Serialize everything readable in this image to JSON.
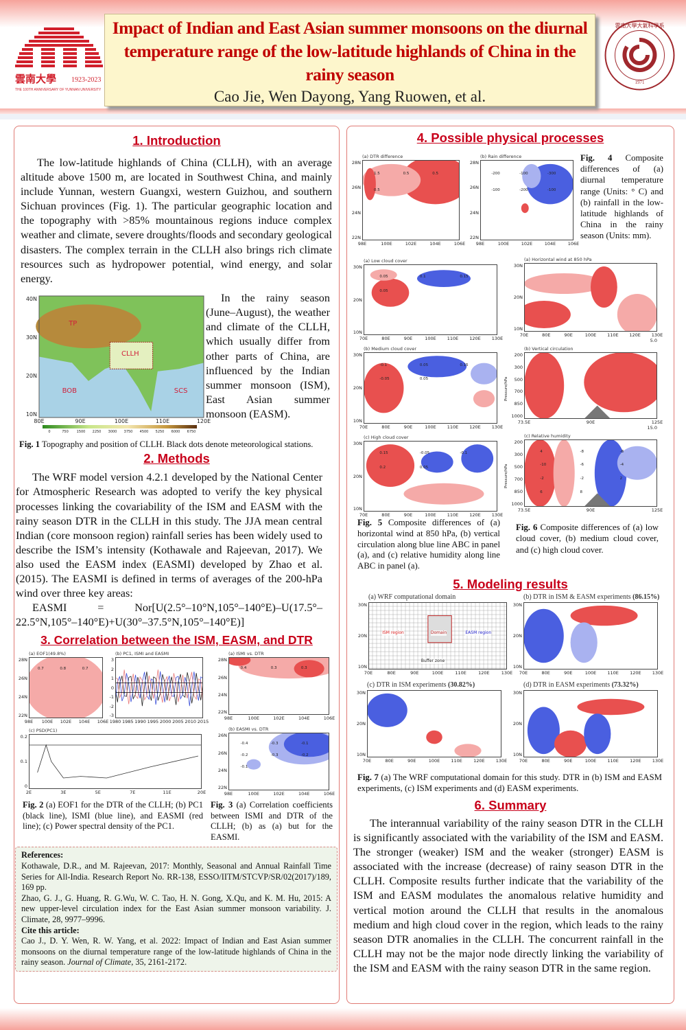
{
  "header": {
    "title": "Impact of Indian and East Asian summer monsoons on the diurnal temperature range of the low-latitude highlands of China in the rainy season",
    "authors": "Cao Jie, Wen Dayong, Yang Ruowen, et al.",
    "logo_left_text": "雲南大學 1923-2023 THE 100TH ANNIVERSARY OF YUNNAN UNIVERSITY",
    "logo_right_text": "雲南大學大氣科學系 1971 DEPARTMENT OF ATMOSPHERIC SCIENCES",
    "accent_color": "#c00000"
  },
  "introduction": {
    "heading": "1. Introduction",
    "paragraph": "The low-latitude highlands of China (CLLH), with an average altitude above 1500 m, are located in Southwest China, and mainly include Yunnan, western Guangxi, western Guizhou, and southern Sichuan provinces (Fig. 1). The particular geographic location and the topography with >85% mountainous regions induce complex weather and climate, severe droughts/floods and secondary geological disasters. The complex terrain in the CLLH also brings rich climate resources such as hydropower potential, wind energy, and solar energy.",
    "side_paragraph": "In the rainy season (June–August), the weather and climate of the CLLH, which usually differ from other parts of China, are influenced by the Indian summer monsoon (ISM), East Asian summer monsoon (EASM).",
    "fig1": {
      "labels": [
        "TP",
        "CLLH",
        "BOB",
        "SCS"
      ],
      "xticks": [
        "80E",
        "90E",
        "100E",
        "110E",
        "120E"
      ],
      "yticks": [
        "40N",
        "30N",
        "20N",
        "10N"
      ],
      "colorbar_ticks": [
        "0",
        "750",
        "1500",
        "2250",
        "3000",
        "3750",
        "4500",
        "5250",
        "6000",
        "6750"
      ],
      "caption_label": "Fig. 1",
      "caption": " Topography and position of CLLH. Black dots denote meteorological stations."
    }
  },
  "methods": {
    "heading": "2. Methods",
    "paragraph": "The WRF model version 4.2.1 developed by the National Center for Atmospheric Research was adopted to verify the key physical processes linking the covariability of the ISM and EASM with the rainy season DTR in the CLLH in this study. The JJA mean central Indian (core monsoon region) rainfall series has been widely used to describe the ISM’s intensity (Kothawale and Rajeevan, 2017). We also used the EASM index (EASMI) developed by Zhao et al. (2015). The EASMI is defined in terms of averages of the 200-hPa wind over three key areas:",
    "formula": "EASMI = Nor[U(2.5°–10°N,105°–140°E)–U(17.5°–22.5°N,105°–140°E)+U(30°–37.5°N,105°–140°E)]"
  },
  "correlation": {
    "heading": "3. Correlation between the ISM, EASM, and DTR",
    "fig2_caption_label": "Fig. 2",
    "fig2_caption": " (a) EOF1 for the DTR of the CLLH; (b) PC1 (black line), ISMI (blue line), and EASMI (red line); (c) Power spectral density of the PC1.",
    "fig3_caption_label": "Fig. 3",
    "fig3_caption": " (a) Correlation coefficients between ISMI and DTR of the CLLH; (b) as (a) but for the EASMI."
  },
  "references": {
    "heading": "References:",
    "items": [
      "Kothawale, D.R., and M. Rajeevan, 2017: Monthly, Seasonal and Annual Rainfall Time Series for All-India. Research Report No. RR-138, ESSO/IITM/STCVP/SR/02(2017)/189, 169 pp.",
      "Zhao, G. J., G. Huang, R. G.Wu, W. C. Tao, H. N. Gong, X.Qu, and K. M. Hu, 2015: A new upper-level circulation index for the East Asian summer monsoon variability. J. Climate, 28, 9977–9996."
    ],
    "cite_heading": "Cite this article:",
    "cite_text": "Cao J., D. Y. Wen, R. W. Yang, et al. 2022: Impact of Indian and East Asian summer monsoons on the diurnal temperature range of the low-latitude highlands of China in the rainy season. ",
    "cite_journal": "Journal of Climate",
    "cite_tail": ", 35, 2161-2172."
  },
  "processes": {
    "heading": "4. Possible physical processes",
    "fig4_caption_label": "Fig. 4",
    "fig4_caption": " Composite differences of (a) diurnal temperature range (Units: ° C) and (b) rainfall in the low-latitude highlands of China in the rainy season (Units: mm).",
    "fig5_caption_label": "Fig. 5",
    "fig5_caption": " Composite differences of (a) horizontal wind at 850 hPa, (b) vertical circulation along blue line ABC in panel (a), and (c) relative humidity along line ABC in panel (a).",
    "fig6_caption_label": "Fig. 6",
    "fig6_caption": " Composite differences of (a) low cloud cover, (b) medium cloud cover, and (c) high cloud cover."
  },
  "modeling": {
    "heading": "5. Modeling results",
    "fig7_caption_label": "Fig. 7",
    "fig7_caption": " (a) The WRF computational domain for this study. DTR in (b) ISM and EASM experiments, (c) ISM experiments and (d) EASM experiments.",
    "domain_labels": [
      "ISM region",
      "Domain",
      "EASM region",
      "Buffer zone"
    ]
  },
  "summary": {
    "heading": "6. Summary",
    "paragraph": "The interannual variability of the rainy season DTR in the CLLH is significantly associated with the variability of the ISM and EASM. The stronger (weaker) ISM and the weaker (stronger) EASM is associated with the increase (decrease) of rainy season DTR in the CLLH. Composite results further indicate that the variability of the ISM and EASM modulates the anomalous relative humidity and vertical motion around the CLLH that results in the anomalous medium and high cloud cover in the region, which leads to the rainy season DTR anomalies in the CLLH. The concurrent rainfall in the CLLH may not be the major node directly linking the variability of the ISM and EASM with the rainy season DTR in the same region."
  },
  "figures": {
    "f2a": {
      "title": "(a) EOF1(49.8%)",
      "xticks": [
        "98E",
        "100E",
        "102E",
        "104E",
        "106E"
      ],
      "yticks": [
        "28N",
        "26N",
        "24N",
        "22N"
      ],
      "labels": [
        "0.7",
        "0.8",
        "0.7"
      ]
    },
    "f2b": {
      "title": "(b) PC1, ISMI and EASMI",
      "xticks": [
        "1980",
        "1985",
        "1990",
        "1995",
        "2000",
        "2005",
        "2010",
        "2015"
      ],
      "yticks": [
        "3",
        "2",
        "1",
        "0",
        "-1",
        "-2",
        "-3"
      ]
    },
    "f2c": {
      "title": "(c) PSD(PC1)",
      "xticks": [
        "2E",
        "3E",
        "5E",
        "7E",
        "11E",
        "20E"
      ],
      "yticks": [
        "0.2",
        "0.1",
        "0"
      ]
    },
    "f3a": {
      "title": "(a) ISMI vs. DTR",
      "xticks": [
        "98E",
        "100E",
        "102E",
        "104E",
        "106E"
      ],
      "yticks": [
        "28N",
        "26N",
        "24N",
        "22N"
      ],
      "labels": [
        "0.4",
        "0.3",
        "0.3"
      ]
    },
    "f3b": {
      "title": "(b) EASMI vs. DTR",
      "xticks": [
        "98E",
        "100E",
        "102E",
        "104E",
        "106E"
      ],
      "yticks": [
        "26N",
        "26N",
        "24N",
        "22N"
      ],
      "labels": [
        "-0.4",
        "-0.3",
        "-0.1",
        "-0.2",
        "-0.3",
        "-0.2",
        "-0.1"
      ]
    },
    "f4a": {
      "title": "(a) DTR difference",
      "xticks": [
        "98E",
        "100E",
        "102E",
        "104E",
        "106E"
      ],
      "yticks": [
        "28N",
        "26N",
        "24N",
        "22N"
      ],
      "labels": [
        "1.5",
        "0.5",
        "0.5",
        "0.5"
      ]
    },
    "f4b": {
      "title": "(b) Rain difference",
      "xticks": [
        "98E",
        "100E",
        "102E",
        "104E",
        "106E"
      ],
      "yticks": [
        "28N",
        "26N",
        "24N",
        "22N"
      ],
      "labels": [
        "-200",
        "-100",
        "-300",
        "-100",
        "-200",
        "-100"
      ]
    },
    "f6a": {
      "title": "(a) Low cloud cover",
      "xticks": [
        "70E",
        "80E",
        "90E",
        "100E",
        "110E",
        "120E",
        "130E"
      ],
      "yticks": [
        "30N",
        "20N",
        "10N"
      ],
      "labels": [
        "0.05",
        "0.1",
        "0.15",
        "0.05"
      ]
    },
    "f6b": {
      "title": "(b) Medium cloud cover",
      "xticks": [
        "70E",
        "80E",
        "90E",
        "100E",
        "110E",
        "120E",
        "130E"
      ],
      "yticks": [
        "30N",
        "20N",
        "10N"
      ],
      "labels": [
        "-0.1",
        "0.05",
        "0.15",
        "-0.05",
        "0.05"
      ]
    },
    "f6c": {
      "title": "(c) High cloud cover",
      "xticks": [
        "70E",
        "80E",
        "90E",
        "100E",
        "110E",
        "120E",
        "130E"
      ],
      "yticks": [
        "30N",
        "20N",
        "10N"
      ],
      "labels": [
        "0.15",
        "-0.05",
        "-0.1",
        "0.2",
        "0.05"
      ]
    },
    "f5a": {
      "title": "(a) Horizontal wind at 850 hPa",
      "xticks": [
        "70E",
        "80E",
        "90E",
        "100E",
        "110E",
        "120E",
        "130E"
      ],
      "yticks": [
        "30N",
        "20N",
        "10N"
      ],
      "vector_ref": "5.0"
    },
    "f5b": {
      "title": "(b) Vertical circulation",
      "xticks": [
        "73.5E",
        "90E",
        "125E"
      ],
      "yticks": [
        "200",
        "300",
        "500",
        "700",
        "850",
        "1000"
      ],
      "ylabel": "Pressure/hPa",
      "vector_ref": "15.0"
    },
    "f5c": {
      "title": "(c) Relative humidity",
      "xticks": [
        "73.5E",
        "90E",
        "125E"
      ],
      "yticks": [
        "200",
        "300",
        "500",
        "700",
        "850",
        "1000"
      ],
      "ylabel": "Pressure/hPa",
      "labels": [
        "4",
        "-8",
        "-8",
        "-10",
        "-6",
        "-4",
        "-2",
        "-2",
        "2",
        "6",
        "8"
      ]
    },
    "f7a": {
      "title": "(a) WRF computational domain",
      "xticks": [
        "70E",
        "80E",
        "90E",
        "100E",
        "110E",
        "120E",
        "130E"
      ],
      "yticks": [
        "30N",
        "20N",
        "10N"
      ]
    },
    "f7b": {
      "title": "(b) DTR in ISM & EASM  experiments",
      "pct": "(86.15%)",
      "xticks": [
        "70E",
        "80E",
        "90E",
        "100E",
        "110E",
        "120E",
        "130E"
      ],
      "yticks": [
        "30N",
        "20N",
        "10N"
      ]
    },
    "f7c": {
      "title": "(c) DTR in ISM experiments",
      "pct": "(30.82%)",
      "xticks": [
        "70E",
        "80E",
        "90E",
        "100E",
        "110E",
        "120E",
        "130E"
      ],
      "yticks": [
        "30N",
        "20N",
        "10N"
      ]
    },
    "f7d": {
      "title": "(d) DTR in EASM experiments",
      "pct": "(73.32%)",
      "xticks": [
        "70E",
        "80E",
        "90E",
        "100E",
        "110E",
        "120E",
        "130E"
      ],
      "yticks": [
        "30N",
        "20N",
        "10N"
      ]
    }
  },
  "colors": {
    "positive": "#e8504f",
    "positive_light": "#f5aaa8",
    "negative": "#4a5fe0",
    "negative_light": "#a9b2f0",
    "heading": "#c8001a",
    "border": "#e07a74"
  }
}
